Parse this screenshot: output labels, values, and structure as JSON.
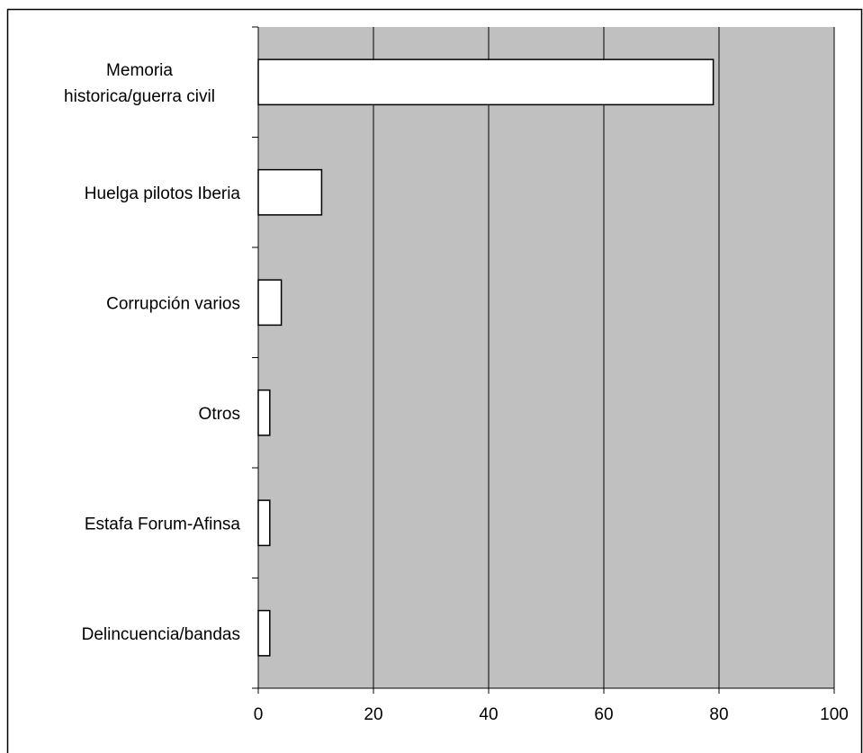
{
  "chart_data": {
    "type": "bar",
    "orientation": "horizontal",
    "title": "",
    "categories": [
      [
        "Memoria",
        "historica/guerra civil"
      ],
      [
        "Huelga pilotos Iberia"
      ],
      [
        "Corrupción varios"
      ],
      [
        "Otros"
      ],
      [
        "Estafa Forum-Afinsa"
      ],
      [
        "Delincuencia/bandas"
      ]
    ],
    "values": [
      79,
      11,
      4,
      2,
      2,
      2
    ],
    "xlim": [
      0,
      100
    ],
    "x_ticks": [
      0,
      20,
      40,
      60,
      80,
      100
    ],
    "grid": true,
    "colors": {
      "plot_area": "#c0c0c0",
      "bar_fill": "#ffffff",
      "bar_stroke": "#000000",
      "grid": "#000000",
      "frame": "#000000"
    }
  }
}
